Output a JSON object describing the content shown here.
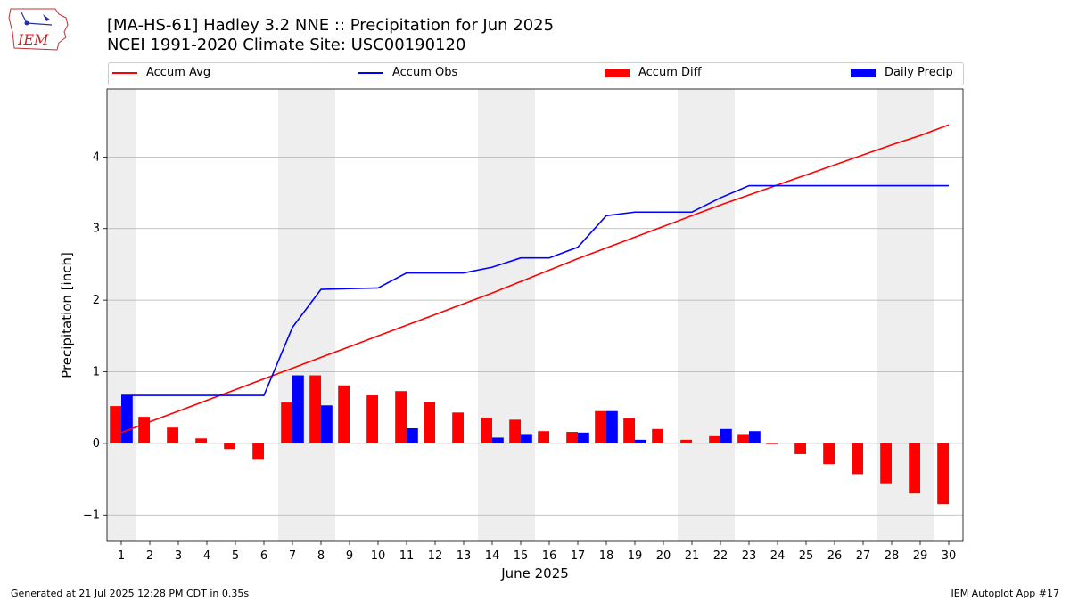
{
  "title_line1": "[MA-HS-61] Hadley 3.2 NNE :: Precipitation for Jun 2025",
  "title_line2": "NCEI 1991-2020 Climate Site: USC00190120",
  "logo_text": "IEM",
  "footer_left": "Generated at 21 Jul 2025 12:28 PM CDT in 0.35s",
  "footer_right": "IEM Autoplot App #17",
  "colors": {
    "accum_avg": "#ff0000",
    "accum_obs": "#0000ff",
    "accum_diff": "#ff0000",
    "daily_precip": "#0000ff",
    "weekend_shade": "#eeeeee",
    "grid": "#b0b0b0"
  },
  "chart_data": {
    "type": "bar",
    "xlabel": "June 2025",
    "ylabel": "Precipitation [inch]",
    "xlim": [
      0.5,
      30.5
    ],
    "ylim": [
      -1.37,
      4.95
    ],
    "yticks": [
      -1,
      0,
      1,
      2,
      3,
      4
    ],
    "ytick_labels": [
      "−1",
      "0",
      "1",
      "2",
      "3",
      "4"
    ],
    "grid": "y",
    "legend_placement": "top",
    "x": [
      1,
      2,
      3,
      4,
      5,
      6,
      7,
      8,
      9,
      10,
      11,
      12,
      13,
      14,
      15,
      16,
      17,
      18,
      19,
      20,
      21,
      22,
      23,
      24,
      25,
      26,
      27,
      28,
      29,
      30
    ],
    "weekend_spans": [
      [
        1,
        1
      ],
      [
        7,
        8
      ],
      [
        14,
        15
      ],
      [
        21,
        22
      ],
      [
        28,
        29
      ]
    ],
    "series": [
      {
        "name": "Accum Avg",
        "kind": "line",
        "values": [
          0.15,
          0.3,
          0.45,
          0.6,
          0.75,
          0.9,
          1.05,
          1.2,
          1.35,
          1.5,
          1.65,
          1.8,
          1.95,
          2.1,
          2.26,
          2.42,
          2.58,
          2.73,
          2.88,
          3.03,
          3.18,
          3.33,
          3.47,
          3.61,
          3.75,
          3.89,
          4.03,
          4.17,
          4.3,
          4.45
        ]
      },
      {
        "name": "Accum Obs",
        "kind": "line",
        "values": [
          0.67,
          0.67,
          0.67,
          0.67,
          0.67,
          0.67,
          1.62,
          2.15,
          2.16,
          2.17,
          2.38,
          2.38,
          2.38,
          2.46,
          2.59,
          2.59,
          2.74,
          3.18,
          3.23,
          3.23,
          3.23,
          3.43,
          3.6,
          3.6,
          3.6,
          3.6,
          3.6,
          3.6,
          3.6,
          3.6
        ]
      },
      {
        "name": "Accum Diff",
        "kind": "bar",
        "values": [
          0.52,
          0.37,
          0.22,
          0.07,
          -0.08,
          -0.23,
          0.57,
          0.95,
          0.81,
          0.67,
          0.73,
          0.58,
          0.43,
          0.36,
          0.33,
          0.17,
          0.16,
          0.45,
          0.35,
          0.2,
          0.05,
          0.1,
          0.13,
          -0.01,
          -0.15,
          -0.29,
          -0.43,
          -0.57,
          -0.7,
          -0.85
        ]
      },
      {
        "name": "Daily Precip",
        "kind": "bar",
        "values": [
          0.67,
          0,
          0,
          0,
          0,
          0,
          0.95,
          0.53,
          0.01,
          0.01,
          0.21,
          0,
          0,
          0.08,
          0.13,
          0,
          0.15,
          0.45,
          0.05,
          0,
          0,
          0.2,
          0.17,
          0,
          0,
          0,
          0,
          0,
          0,
          0
        ]
      }
    ]
  }
}
